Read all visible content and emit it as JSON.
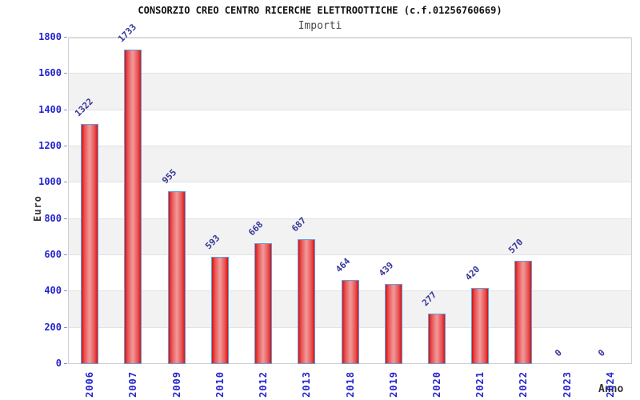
{
  "header": {
    "title": "CONSORZIO CREO CENTRO RICERCHE ELETTROOTTICHE (c.f.01256760669)",
    "subtitle": "Importi"
  },
  "chart_data": {
    "type": "bar",
    "title": "CONSORZIO CREO CENTRO RICERCHE ELETTROOTTICHE (c.f.01256760669)",
    "subtitle": "Importi",
    "xlabel": "Anno",
    "ylabel": "Euro",
    "categories": [
      "2006",
      "2007",
      "2009",
      "2010",
      "2012",
      "2013",
      "2018",
      "2019",
      "2020",
      "2021",
      "2022",
      "2023",
      "2024"
    ],
    "values": [
      1322,
      1733,
      955,
      593,
      668,
      687,
      464,
      439,
      277,
      420,
      570,
      0,
      0
    ],
    "ylim": [
      0,
      1800
    ],
    "ytick_step": 200,
    "ytick_labels": [
      "0",
      "200",
      "400",
      "600",
      "800",
      "1000",
      "1200",
      "1400",
      "1600",
      "1800"
    ],
    "grid": "alternating-horizontal-bands",
    "legend": "none",
    "colors": {
      "tick_label": "#2525cc",
      "value_label": "#35359a",
      "band_gray": "#f2f2f2",
      "grid_line": "#e2e2e2",
      "axis": "#cfcfcf",
      "bar_edge": "#d61414",
      "bar_mid": "#ea5050",
      "bar_center": "#f09b9b",
      "bar_border": "#5f9fdc",
      "title": "#111111",
      "subtitle": "#4a4a4a",
      "axis_title": "#333333"
    }
  }
}
